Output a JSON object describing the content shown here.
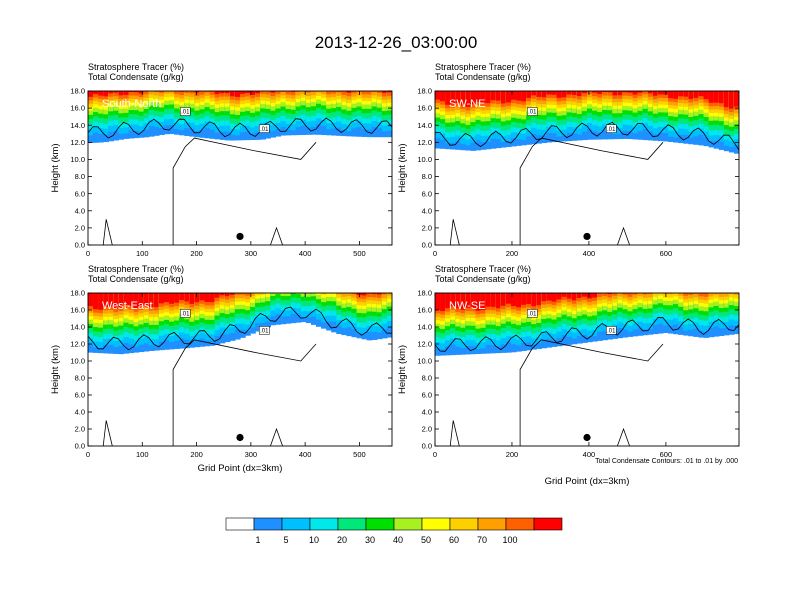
{
  "figure": {
    "title": "2013-12-26_03:00:00",
    "header_line1": "Stratosphere Tracer   (%)",
    "header_line2": "Total Condensate   (g/kg)",
    "ylabel": "Height (km)",
    "xlabel": "Grid Point (dx=3km)",
    "contour_note": "Total Condensate Contours: .01 to .01 by .000",
    "contour_label": ".01"
  },
  "colorbar": {
    "labels": [
      "1",
      "5",
      "10",
      "20",
      "30",
      "40",
      "50",
      "60",
      "70",
      "100"
    ],
    "colors": [
      "#ffffff",
      "#1e90ff",
      "#00bfff",
      "#00e8e8",
      "#00e87a",
      "#00e000",
      "#a8f020",
      "#ffff00",
      "#ffd000",
      "#ffa000",
      "#ff6000",
      "#ff0000"
    ]
  },
  "chart_data": [
    {
      "type": "heatmap",
      "label": "South-North",
      "xlim": [
        0,
        560
      ],
      "xticks": [
        0,
        100,
        200,
        300,
        400,
        500
      ],
      "ylim": [
        0,
        18
      ],
      "yticks": [
        "0.0",
        "2.0",
        "4.0",
        "6.0",
        "8.0",
        "10.0",
        "12.0",
        "14.0",
        "16.0",
        "18.0"
      ],
      "marker_x": 280,
      "marker_y": 1.0,
      "tracer_base_km": [
        [
          0,
          11.9
        ],
        [
          30,
          12.0
        ],
        [
          70,
          12.4
        ],
        [
          110,
          12.6
        ],
        [
          150,
          13.0
        ],
        [
          200,
          12.6
        ],
        [
          260,
          12.2
        ],
        [
          320,
          12.3
        ],
        [
          360,
          12.8
        ],
        [
          420,
          12.9
        ],
        [
          480,
          12.7
        ],
        [
          520,
          12.6
        ],
        [
          560,
          12.6
        ]
      ]
    },
    {
      "type": "heatmap",
      "label": "SW-NE",
      "xlim": [
        0,
        790
      ],
      "xticks": [
        0,
        200,
        400,
        600
      ],
      "ylim": [
        0,
        18
      ],
      "yticks": [
        "0.0",
        "2.0",
        "4.0",
        "6.0",
        "8.0",
        "10.0",
        "12.0",
        "14.0",
        "16.0",
        "18.0"
      ],
      "marker_x": 395,
      "marker_y": 1.0,
      "tracer_base_km": [
        [
          0,
          11.3
        ],
        [
          100,
          11.0
        ],
        [
          200,
          11.5
        ],
        [
          300,
          12.0
        ],
        [
          400,
          12.3
        ],
        [
          500,
          12.4
        ],
        [
          600,
          12.1
        ],
        [
          700,
          11.6
        ],
        [
          790,
          10.6
        ]
      ]
    },
    {
      "type": "heatmap",
      "label": "West-East",
      "xlim": [
        0,
        560
      ],
      "xticks": [
        0,
        100,
        200,
        300,
        400,
        500
      ],
      "ylim": [
        0,
        18
      ],
      "yticks": [
        "0.0",
        "2.0",
        "4.0",
        "6.0",
        "8.0",
        "10.0",
        "12.0",
        "14.0",
        "16.0",
        "18.0"
      ],
      "marker_x": 280,
      "marker_y": 1.0,
      "tracer_base_km": [
        [
          0,
          11.0
        ],
        [
          60,
          10.8
        ],
        [
          120,
          11.2
        ],
        [
          180,
          11.5
        ],
        [
          230,
          11.8
        ],
        [
          280,
          12.6
        ],
        [
          340,
          14.2
        ],
        [
          400,
          14.6
        ],
        [
          460,
          13.2
        ],
        [
          520,
          12.4
        ],
        [
          560,
          12.8
        ]
      ]
    },
    {
      "type": "heatmap",
      "label": "NW-SE",
      "xlim": [
        0,
        790
      ],
      "xticks": [
        0,
        200,
        400,
        600
      ],
      "ylim": [
        0,
        18
      ],
      "yticks": [
        "0.0",
        "2.0",
        "4.0",
        "6.0",
        "8.0",
        "10.0",
        "12.0",
        "14.0",
        "16.0",
        "18.0"
      ],
      "marker_x": 395,
      "marker_y": 1.0,
      "tracer_base_km": [
        [
          0,
          10.6
        ],
        [
          100,
          10.8
        ],
        [
          200,
          11.0
        ],
        [
          300,
          11.6
        ],
        [
          400,
          12.2
        ],
        [
          500,
          12.8
        ],
        [
          600,
          13.3
        ],
        [
          700,
          12.7
        ],
        [
          790,
          13.2
        ]
      ]
    }
  ]
}
